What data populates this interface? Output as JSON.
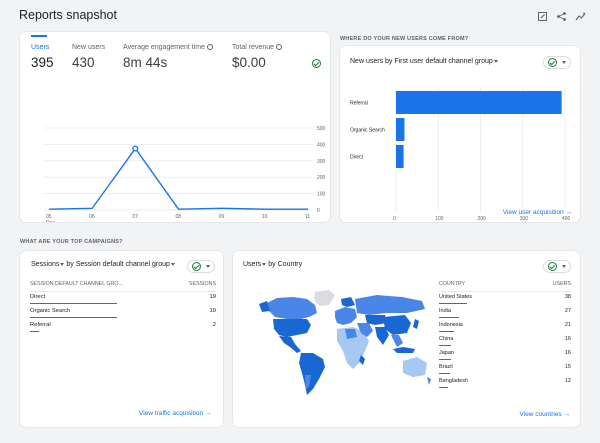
{
  "header": {
    "title": "Reports snapshot",
    "icons": [
      "edit-icon",
      "share-icon",
      "insights-icon"
    ]
  },
  "overview": {
    "metrics": [
      {
        "label": "Users",
        "value": "395",
        "active": true,
        "info": false
      },
      {
        "label": "New users",
        "value": "430",
        "active": false,
        "info": false
      },
      {
        "label": "Average engagement time",
        "value": "8m 44s",
        "active": false,
        "info": true
      },
      {
        "label": "Total revenue",
        "value": "$0.00",
        "active": false,
        "info": true
      }
    ],
    "status_icon": "check-circle-icon",
    "chart_data": {
      "type": "line",
      "x": [
        "05",
        "06",
        "07",
        "08",
        "09",
        "10",
        "11"
      ],
      "x_sublabel": "Dec",
      "series": [
        {
          "values": [
            5,
            10,
            375,
            5,
            10,
            5,
            5
          ]
        }
      ],
      "y_ticks": [
        0,
        100,
        200,
        300,
        400,
        500
      ],
      "ylim": [
        0,
        500
      ],
      "color": "#1a73e8"
    }
  },
  "new_users_section": {
    "heading": "WHERE DO YOUR NEW USERS COME FROM?",
    "card_title": "New users by First user default channel group",
    "link": "View user acquisition",
    "chart_data": {
      "type": "bar",
      "orientation": "horizontal",
      "categories": [
        "Referral",
        "Organic Search",
        "Direct"
      ],
      "values": [
        392,
        20,
        18
      ],
      "x_ticks": [
        0,
        100,
        200,
        300,
        400
      ],
      "xlim": [
        0,
        400
      ],
      "color": "#1a73e8"
    }
  },
  "campaigns_section": {
    "heading": "WHAT ARE YOUR TOP CAMPAIGNS?",
    "card_title_part1": "Sessions",
    "card_title_part2": "by Session default channel group",
    "columns": [
      "SESSION DEFAULT CHANNEL GRO...",
      "SESSIONS"
    ],
    "rows": [
      {
        "channel": "Direct",
        "sessions": "19",
        "share": 0.47
      },
      {
        "channel": "Organic Search",
        "sessions": "19",
        "share": 0.47
      },
      {
        "channel": "Referral",
        "sessions": "2",
        "share": 0.05
      }
    ],
    "link": "View traffic acquisition"
  },
  "country_section": {
    "card_title_part1": "Users",
    "card_title_part2": "by Country",
    "columns": [
      "COUNTRY",
      "USERS"
    ],
    "rows": [
      {
        "country": "United States",
        "users": "38",
        "share": 1.0
      },
      {
        "country": "India",
        "users": "27",
        "share": 0.71
      },
      {
        "country": "Indonesia",
        "users": "21",
        "share": 0.55
      },
      {
        "country": "China",
        "users": "16",
        "share": 0.42
      },
      {
        "country": "Japan",
        "users": "16",
        "share": 0.42
      },
      {
        "country": "Brazil",
        "users": "15",
        "share": 0.39
      },
      {
        "country": "Bangladesh",
        "users": "12",
        "share": 0.32
      }
    ],
    "link": "View countries"
  },
  "colors": {
    "accent": "#1a73e8",
    "success": "#188038",
    "map_dark": "#1967d2",
    "map_mid": "#4a86e8",
    "map_light": "#a6c8f5",
    "map_none": "#dadce0"
  }
}
